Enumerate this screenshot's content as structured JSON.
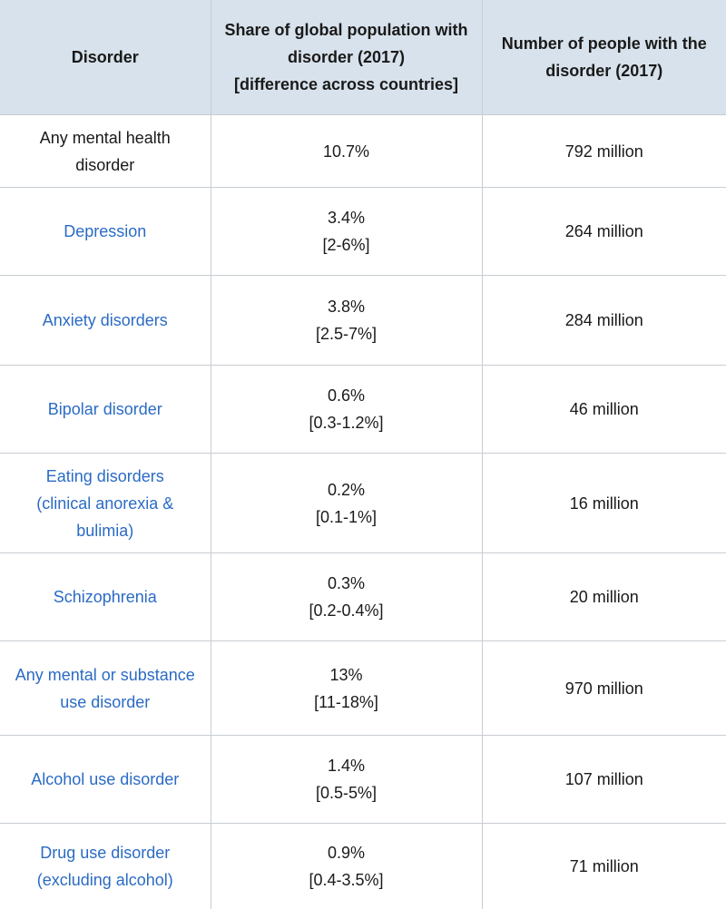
{
  "table": {
    "headers": {
      "disorder": "Disorder",
      "share_lines": [
        "Share of global population with",
        "disorder (2017)",
        "[difference across countries]"
      ],
      "number_lines": [
        "Number of people with the",
        "disorder (2017)"
      ]
    },
    "rows": [
      {
        "disorder_lines": [
          "Any mental health",
          "disorder"
        ],
        "is_link": false,
        "share": "10.7%",
        "range": "",
        "number": "792 million"
      },
      {
        "disorder_lines": [
          "Depression"
        ],
        "is_link": true,
        "share": "3.4%",
        "range": "[2-6%]",
        "number": "264 million"
      },
      {
        "disorder_lines": [
          "Anxiety disorders"
        ],
        "is_link": true,
        "share": "3.8%",
        "range": "[2.5-7%]",
        "number": "284 million"
      },
      {
        "disorder_lines": [
          "Bipolar disorder"
        ],
        "is_link": true,
        "share": "0.6%",
        "range": "[0.3-1.2%]",
        "number": "46 million"
      },
      {
        "disorder_lines": [
          "Eating disorders",
          "(clinical anorexia &",
          "bulimia)"
        ],
        "is_link": true,
        "share": "0.2%",
        "range": "[0.1-1%]",
        "number": "16 million"
      },
      {
        "disorder_lines": [
          "Schizophrenia"
        ],
        "is_link": true,
        "share": "0.3%",
        "range": "[0.2-0.4%]",
        "number": "20 million"
      },
      {
        "disorder_lines": [
          "Any mental or substance",
          "use disorder"
        ],
        "is_link": true,
        "share": "13%",
        "range": "[11-18%]",
        "number": "970 million"
      },
      {
        "disorder_lines": [
          "Alcohol use disorder"
        ],
        "is_link": true,
        "share": "1.4%",
        "range": "[0.5-5%]",
        "number": "107 million"
      },
      {
        "disorder_lines": [
          "Drug use disorder",
          "(excluding alcohol)"
        ],
        "is_link": true,
        "share": "0.9%",
        "range": "[0.4-3.5%]",
        "number": "71 million"
      }
    ]
  },
  "colors": {
    "header_background": "#d8e2ec",
    "link": "#2b6bc4",
    "border": "#c8cdd2",
    "text": "#1a1a1a"
  }
}
